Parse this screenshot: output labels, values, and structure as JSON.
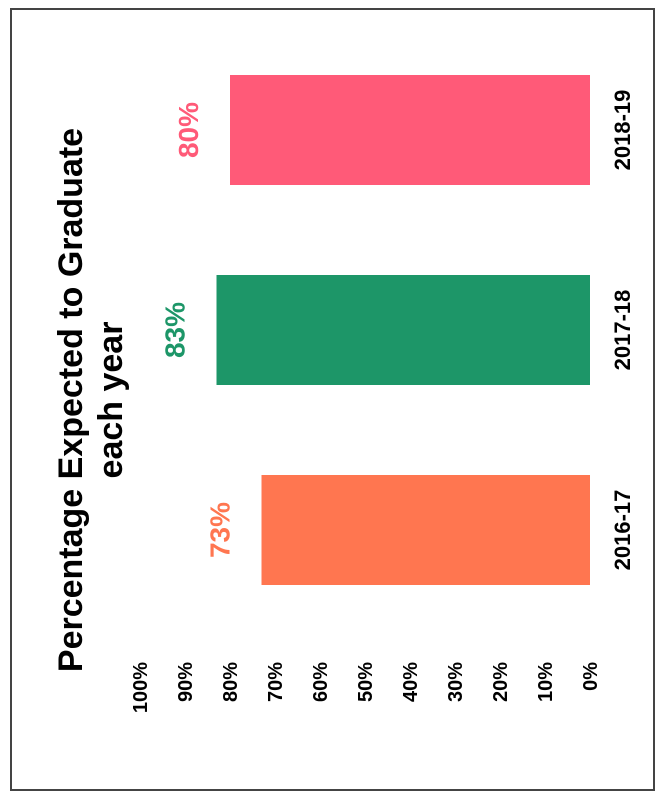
{
  "chart_data": {
    "type": "bar",
    "orientation": "vertical",
    "title": [
      "Percentage Expected to Graduate",
      "each year"
    ],
    "categories": [
      "2016-17",
      "2017-18",
      "2018-19"
    ],
    "values": [
      73,
      83,
      80
    ],
    "data_labels": [
      "73%",
      "83%",
      "80%"
    ],
    "colors": [
      "#ff7650",
      "#1d9668",
      "#ff5a78"
    ],
    "y_ticks": [
      "0%",
      "10%",
      "20%",
      "30%",
      "40%",
      "50%",
      "60%",
      "70%",
      "80%",
      "90%",
      "100%"
    ],
    "ylim": [
      0,
      100
    ],
    "grid": false,
    "legend": "none",
    "xlabel": "",
    "ylabel": ""
  }
}
